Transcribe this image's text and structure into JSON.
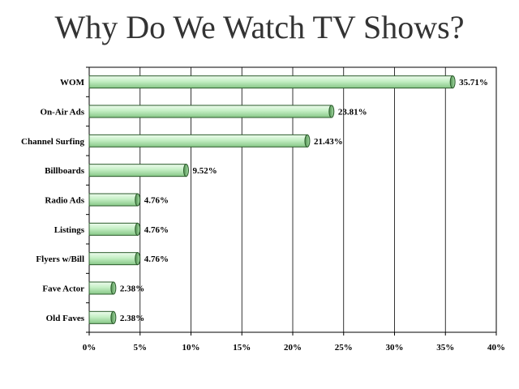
{
  "title": "Why Do We Watch TV Shows?",
  "chart_data": {
    "type": "bar",
    "orientation": "horizontal",
    "title": "Why Do We Watch TV Shows?",
    "categories": [
      "WOM",
      "On-Air Ads",
      "Channel Surfing",
      "Billboards",
      "Radio Ads",
      "Listings",
      "Flyers w/Bill",
      "Fave Actor",
      "Old Faves"
    ],
    "values": [
      35.71,
      23.81,
      21.43,
      9.52,
      4.76,
      4.76,
      4.76,
      2.38,
      2.38
    ],
    "data_labels": [
      "35.71%",
      "23.81%",
      "21.43%",
      "9.52%",
      "4.76%",
      "4.76%",
      "4.76%",
      "2.38%",
      "2.38%"
    ],
    "xlim": [
      0,
      40
    ],
    "xticks": [
      0,
      5,
      10,
      15,
      20,
      25,
      30,
      35,
      40
    ],
    "xtick_labels": [
      "0%",
      "5%",
      "10%",
      "15%",
      "20%",
      "25%",
      "30%",
      "35%",
      "40%"
    ],
    "xlabel": "",
    "ylabel": "",
    "grid": true,
    "legend": "none",
    "bar_color": "#c8f0c8",
    "bar_edge_color": "#2a5a2a"
  }
}
